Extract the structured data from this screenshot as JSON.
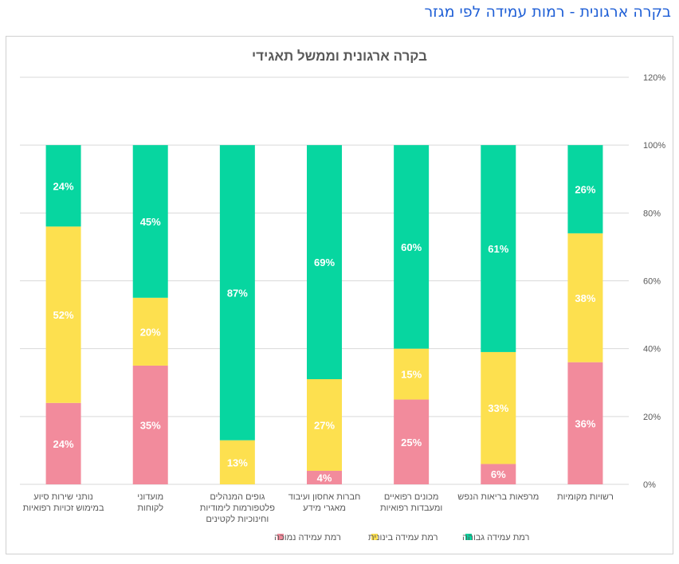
{
  "page": {
    "title": "בקרה ארגונית - רמות עמידה לפי מגזר"
  },
  "chart_data": {
    "type": "bar",
    "stacked": true,
    "title": "בקרה ארגונית וממשל תאגידי",
    "categories": [
      [
        "רשויות מקומיות"
      ],
      [
        "מרפאות בריאות הנפש"
      ],
      [
        "מכונים רפואיים",
        "ומעבדות רפואיות"
      ],
      [
        "חברות אחסון ועיבוד",
        "מאגרי מידע"
      ],
      [
        "גופים המנהלים",
        "פלטפורמות לימודיות",
        "וחינוכיות לקטינים"
      ],
      [
        "מועדוני",
        "לקוחות"
      ],
      [
        "נותני שירות סיוע",
        "במימוש זכויות רפואיות"
      ]
    ],
    "series": [
      {
        "name": "רמת עמידה נמוכה",
        "color": "#f28b9c",
        "values": [
          36,
          6,
          25,
          4,
          0,
          35,
          24
        ],
        "labels": [
          "36%",
          "6%",
          "25%",
          "4%",
          "",
          "35%",
          "24%"
        ]
      },
      {
        "name": "רמת עמידה בינונית",
        "color": "#fde04f",
        "values": [
          38,
          33,
          15,
          27,
          13,
          20,
          52
        ],
        "labels": [
          "38%",
          "33%",
          "15%",
          "27%",
          "13%",
          "20%",
          "52%"
        ]
      },
      {
        "name": "רמת עמידה גבוהה",
        "color": "#07d6a0",
        "values": [
          26,
          61,
          60,
          69,
          87,
          45,
          24
        ],
        "labels": [
          "26%",
          "61%",
          "60%",
          "69%",
          "87%",
          "45%",
          "24%"
        ]
      }
    ],
    "yaxis": {
      "position": "right",
      "ylim": [
        0,
        120
      ],
      "ticks": [
        0,
        20,
        40,
        60,
        80,
        100,
        120
      ],
      "tick_labels": [
        "0%",
        "20%",
        "40%",
        "60%",
        "80%",
        "100%",
        "120%"
      ]
    },
    "grid": true,
    "legend": {
      "position": "bottom",
      "order": [
        "רמת עמידה גבוהה",
        "רמת עמידה בינונית",
        "רמת עמידה נמוכה"
      ]
    }
  }
}
